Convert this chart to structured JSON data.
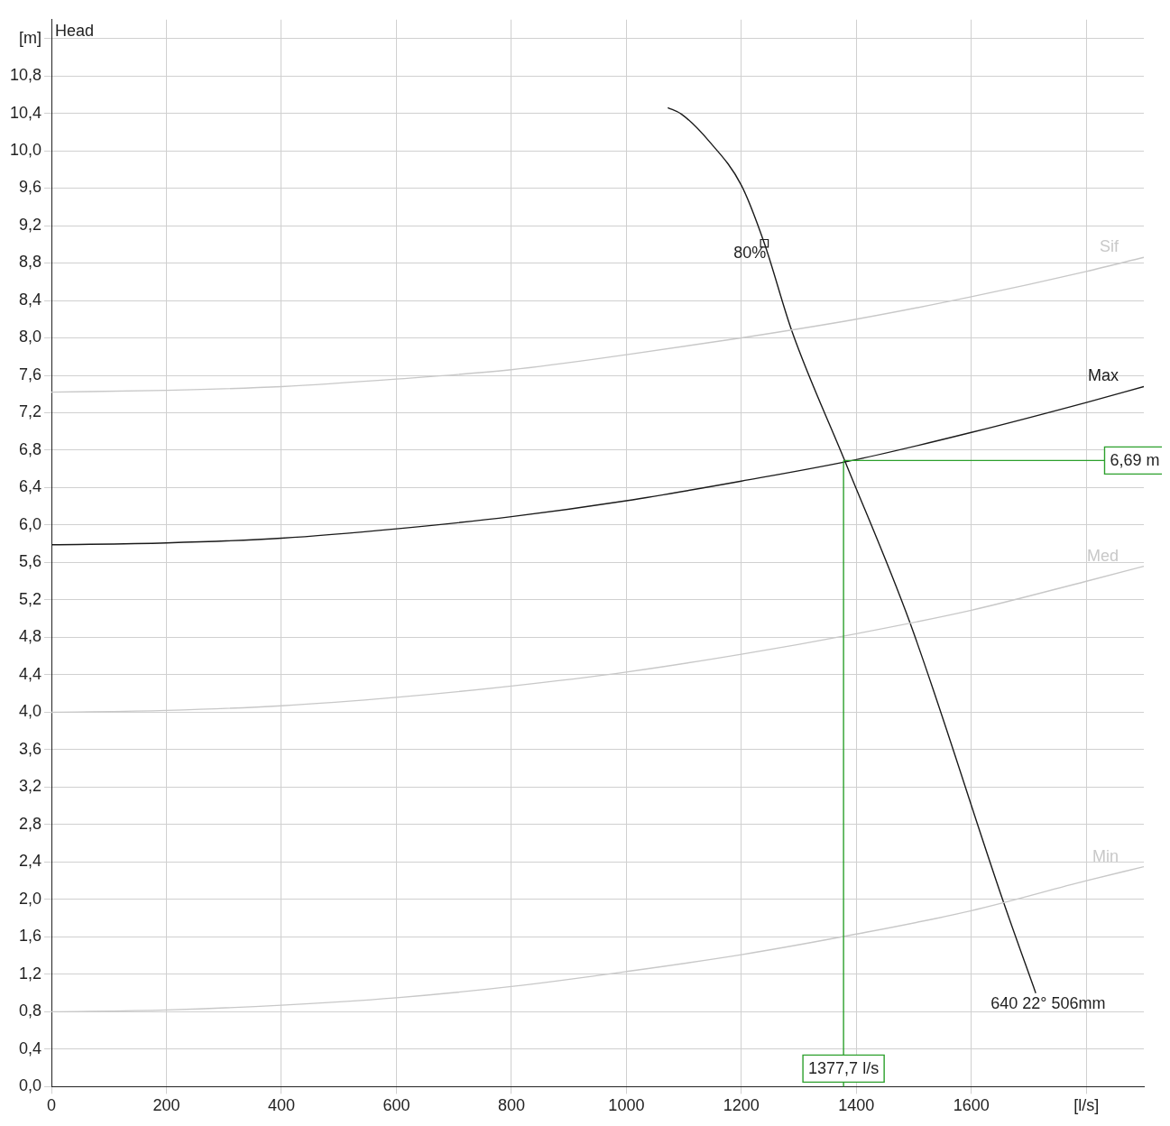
{
  "chart_data": {
    "type": "line",
    "ylabel": "Head",
    "xlim": [
      0,
      1900
    ],
    "ylim": [
      0,
      11.4
    ],
    "xticks": [
      0,
      200,
      400,
      600,
      800,
      1000,
      1200,
      1400,
      1600,
      {
        "value": 1800,
        "label": "[l/s]"
      }
    ],
    "yticks": [
      {
        "value": 0,
        "label": "0,0"
      },
      {
        "value": 0.4,
        "label": "0,4"
      },
      {
        "value": 0.8,
        "label": "0,8"
      },
      {
        "value": 1.2,
        "label": "1,2"
      },
      {
        "value": 1.6,
        "label": "1,6"
      },
      {
        "value": 2.0,
        "label": "2,0"
      },
      {
        "value": 2.4,
        "label": "2,4"
      },
      {
        "value": 2.8,
        "label": "2,8"
      },
      {
        "value": 3.2,
        "label": "3,2"
      },
      {
        "value": 3.6,
        "label": "3,6"
      },
      {
        "value": 4.0,
        "label": "4,0"
      },
      {
        "value": 4.4,
        "label": "4,4"
      },
      {
        "value": 4.8,
        "label": "4,8"
      },
      {
        "value": 5.2,
        "label": "5,2"
      },
      {
        "value": 5.6,
        "label": "5,6"
      },
      {
        "value": 6.0,
        "label": "6,0"
      },
      {
        "value": 6.4,
        "label": "6,4"
      },
      {
        "value": 6.8,
        "label": "6,8"
      },
      {
        "value": 7.2,
        "label": "7,2"
      },
      {
        "value": 7.6,
        "label": "7,6"
      },
      {
        "value": 8.0,
        "label": "8,0"
      },
      {
        "value": 8.4,
        "label": "8,4"
      },
      {
        "value": 8.8,
        "label": "8,8"
      },
      {
        "value": 9.2,
        "label": "9,2"
      },
      {
        "value": 9.6,
        "label": "9,6"
      },
      {
        "value": 10.0,
        "label": "10,0"
      },
      {
        "value": 10.4,
        "label": "10,4"
      },
      {
        "value": 10.8,
        "label": "10,8"
      },
      {
        "value": 11.2,
        "label": "[m]"
      }
    ],
    "grid": true,
    "legend": false,
    "marker": "none",
    "line_style": "solid",
    "series": [
      {
        "name": "Sif",
        "color": "#c8c8c8",
        "x": [
          0,
          200,
          400,
          600,
          800,
          1000,
          1200,
          1400,
          1600,
          1800,
          1900
        ],
        "values": [
          7.42,
          7.44,
          7.48,
          7.56,
          7.66,
          7.82,
          8.0,
          8.2,
          8.44,
          8.71,
          8.86
        ]
      },
      {
        "name": "Max",
        "color": "#1a1a1a",
        "x": [
          0,
          200,
          400,
          600,
          800,
          1000,
          1200,
          1400,
          1600,
          1800,
          1900
        ],
        "values": [
          5.79,
          5.81,
          5.86,
          5.96,
          6.09,
          6.26,
          6.47,
          6.7,
          6.99,
          7.31,
          7.48
        ]
      },
      {
        "name": "Med",
        "color": "#c8c8c8",
        "x": [
          0,
          200,
          400,
          600,
          800,
          1000,
          1200,
          1400,
          1600,
          1800,
          1900
        ],
        "values": [
          4.0,
          4.02,
          4.07,
          4.16,
          4.28,
          4.43,
          4.62,
          4.84,
          5.09,
          5.4,
          5.56
        ]
      },
      {
        "name": "Min",
        "color": "#c8c8c8",
        "x": [
          0,
          200,
          400,
          600,
          800,
          1000,
          1200,
          1400,
          1600,
          1800,
          1900
        ],
        "values": [
          0.8,
          0.82,
          0.87,
          0.95,
          1.07,
          1.23,
          1.41,
          1.63,
          1.88,
          2.2,
          2.35
        ]
      },
      {
        "name": "640 22° 506mm",
        "color": "#1a1a1a",
        "x": [
          1072,
          1096,
          1144,
          1200,
          1240,
          1288,
          1381,
          1493,
          1656,
          1712
        ],
        "values": [
          10.46,
          10.39,
          10.1,
          9.63,
          9.01,
          8.07,
          6.67,
          4.96,
          1.97,
          1.0
        ]
      },
      {
        "type": "scatter",
        "marker": "square",
        "color": "#1a1a1a",
        "x": [
          1240
        ],
        "values": [
          9.01
        ]
      }
    ],
    "annotations": [
      {
        "text": "80%",
        "x": 1240,
        "y": 9.01
      }
    ],
    "ref_lines": [
      {
        "axis": "x",
        "value": 1377.7,
        "label": "1377,7 l/s",
        "color": "#2ca02c"
      },
      {
        "axis": "y",
        "value": 6.69,
        "label": "6,69 m",
        "color": "#2ca02c"
      }
    ]
  }
}
